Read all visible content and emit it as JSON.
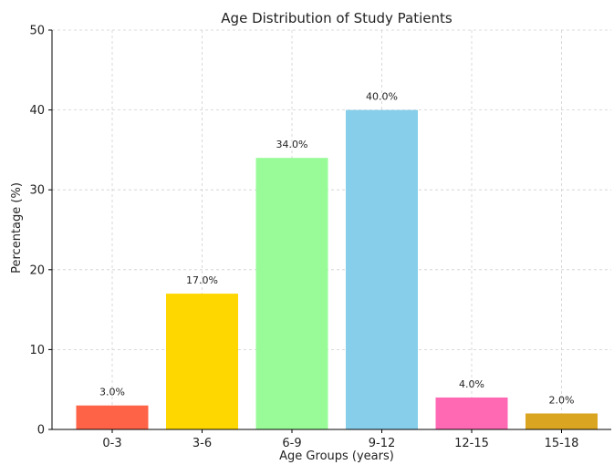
{
  "chart_data": {
    "type": "bar",
    "title": "Age Distribution of Study Patients",
    "xlabel": "Age Groups (years)",
    "ylabel": "Percentage (%)",
    "categories": [
      "0-3",
      "3-6",
      "6-9",
      "9-12",
      "12-15",
      "15-18"
    ],
    "values": [
      3.0,
      17.0,
      34.0,
      40.0,
      4.0,
      2.0
    ],
    "data_labels": [
      "3.0%",
      "17.0%",
      "34.0%",
      "40.0%",
      "4.0%",
      "2.0%"
    ],
    "colors": [
      "#ff6347",
      "#ffd700",
      "#98fb98",
      "#87ceeb",
      "#ff69b4",
      "#daa520"
    ],
    "ylim": [
      0,
      50
    ],
    "yticks": [
      0,
      10,
      20,
      30,
      40,
      50
    ],
    "grid": true,
    "legend": "none"
  }
}
